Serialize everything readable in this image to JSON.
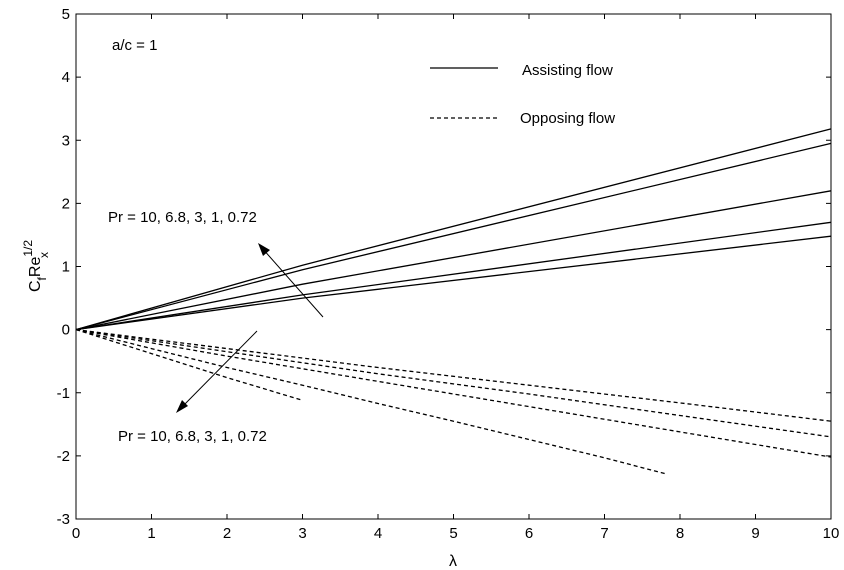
{
  "chart_data": {
    "type": "line",
    "title": "",
    "xlabel": "λ",
    "ylabel_main": "C",
    "ylabel_sub_f": "f",
    "ylabel_re": "Re",
    "ylabel_sup": "1/2",
    "ylabel_sub_x": "x",
    "xlim": [
      0,
      10
    ],
    "ylim": [
      -3,
      5
    ],
    "xticks": [
      "0",
      "1",
      "2",
      "3",
      "4",
      "5",
      "6",
      "7",
      "8",
      "9",
      "10"
    ],
    "yticks": [
      "-3",
      "-2",
      "-1",
      "0",
      "1",
      "2",
      "3",
      "4",
      "5"
    ],
    "grid": false,
    "legend": [
      {
        "label": "Assisting flow",
        "style": "solid"
      },
      {
        "label": "Opposing flow",
        "style": "dashed"
      }
    ],
    "annotations": {
      "ratio": "a/c = 1",
      "pr_assisting": "Pr = 10, 6.8, 3, 1, 0.72",
      "pr_opposing": "Pr = 10, 6.8, 3, 1, 0.72"
    },
    "series": [
      {
        "group": "assisting",
        "x": [
          0,
          3,
          10
        ],
        "y": [
          0,
          1.02,
          3.18
        ]
      },
      {
        "group": "assisting",
        "x": [
          0,
          3,
          10
        ],
        "y": [
          0,
          0.95,
          2.95
        ]
      },
      {
        "group": "assisting",
        "x": [
          0,
          3,
          10
        ],
        "y": [
          0,
          0.72,
          2.2
        ]
      },
      {
        "group": "assisting",
        "x": [
          0,
          3,
          10
        ],
        "y": [
          0,
          0.55,
          1.7
        ]
      },
      {
        "group": "assisting",
        "x": [
          0,
          3,
          10
        ],
        "y": [
          0,
          0.5,
          1.48
        ]
      },
      {
        "group": "opposing",
        "x": [
          0,
          1,
          2,
          3
        ],
        "y": [
          0,
          -0.38,
          -0.76,
          -1.12
        ]
      },
      {
        "group": "opposing",
        "x": [
          0,
          1,
          2,
          3,
          4,
          5,
          6,
          7,
          7.8
        ],
        "y": [
          0,
          -0.3,
          -0.6,
          -0.88,
          -1.17,
          -1.45,
          -1.74,
          -2.03,
          -2.28
        ]
      },
      {
        "group": "opposing",
        "x": [
          0,
          2,
          4,
          6,
          8,
          10
        ],
        "y": [
          0,
          -0.42,
          -0.82,
          -1.22,
          -1.62,
          -2.02
        ]
      },
      {
        "group": "opposing",
        "x": [
          0,
          2,
          4,
          6,
          8,
          10
        ],
        "y": [
          0,
          -0.35,
          -0.7,
          -1.02,
          -1.36,
          -1.7
        ]
      },
      {
        "group": "opposing",
        "x": [
          0,
          2,
          4,
          6,
          8,
          10
        ],
        "y": [
          0,
          -0.3,
          -0.6,
          -0.88,
          -1.16,
          -1.45
        ]
      }
    ]
  }
}
